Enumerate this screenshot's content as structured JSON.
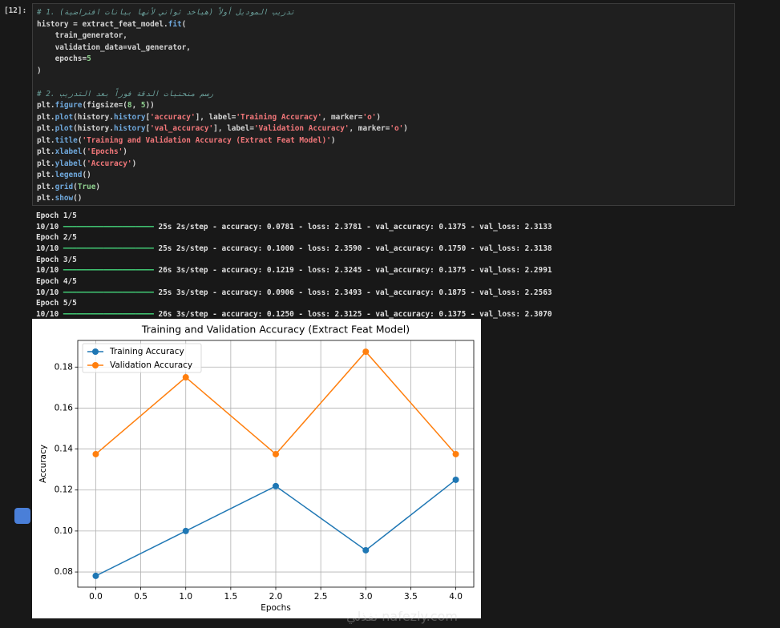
{
  "cell": {
    "prompt": "[12]:",
    "code_blocks": [
      [
        "# 1. تدريب الموديل أولاً (هياخد ثواني لأنها بيانات افتراضية)",
        "history = extract_feat_model.fit(",
        "    train_generator,",
        "    validation_data=val_generator,",
        "    epochs=5",
        ")"
      ],
      [
        "# 2. رسم منحنيات الدقة فوراً بعد التدريب",
        "plt.figure(figsize=(8, 5))",
        "plt.plot(history.history['accuracy'], label='Training Accuracy', marker='o')",
        "plt.plot(history.history['val_accuracy'], label='Validation Accuracy', marker='o')",
        "plt.title('Training and Validation Accuracy (Extract Feat Model)')",
        "plt.xlabel('Epochs')",
        "plt.ylabel('Accuracy')",
        "plt.legend()",
        "plt.grid(True)",
        "plt.show()"
      ]
    ],
    "output": [
      {
        "epoch": "Epoch 1/5",
        "steps": "10/10",
        "bar": "━━━━━━━━━━━━━━━━━━━━",
        "stats": "25s 2s/step - accuracy: 0.0781 - loss: 2.3781 - val_accuracy: 0.1375 - val_loss: 2.3133"
      },
      {
        "epoch": "Epoch 2/5",
        "steps": "10/10",
        "bar": "━━━━━━━━━━━━━━━━━━━━",
        "stats": "25s 2s/step - accuracy: 0.1000 - loss: 2.3590 - val_accuracy: 0.1750 - val_loss: 2.3138"
      },
      {
        "epoch": "Epoch 3/5",
        "steps": "10/10",
        "bar": "━━━━━━━━━━━━━━━━━━━━",
        "stats": "26s 3s/step - accuracy: 0.1219 - loss: 2.3245 - val_accuracy: 0.1375 - val_loss: 2.2991"
      },
      {
        "epoch": "Epoch 4/5",
        "steps": "10/10",
        "bar": "━━━━━━━━━━━━━━━━━━━━",
        "stats": "25s 3s/step - accuracy: 0.0906 - loss: 2.3493 - val_accuracy: 0.1875 - val_loss: 2.2563"
      },
      {
        "epoch": "Epoch 5/5",
        "steps": "10/10",
        "bar": "━━━━━━━━━━━━━━━━━━━━",
        "stats": "26s 3s/step - accuracy: 0.1250 - loss: 2.3125 - val_accuracy: 0.1375 - val_loss: 2.3070"
      }
    ]
  },
  "chart_data": {
    "type": "line",
    "title": "Training and Validation Accuracy (Extract Feat Model)",
    "x_label": "Epochs",
    "y_label": "Accuracy",
    "x": [
      0,
      1,
      2,
      3,
      4
    ],
    "series": [
      {
        "name": "Training Accuracy",
        "color": "#1f77b4",
        "values": [
          0.0781,
          0.1,
          0.1219,
          0.0906,
          0.125
        ]
      },
      {
        "name": "Validation Accuracy",
        "color": "#ff7f0e",
        "values": [
          0.1375,
          0.175,
          0.1375,
          0.1875,
          0.1375
        ]
      }
    ],
    "xlim": [
      -0.2,
      4.2
    ],
    "xticks": [
      {
        "value": 0,
        "label": "0.0"
      },
      0.5,
      {
        "value": 1,
        "label": "1.0"
      },
      1.5,
      {
        "value": 2,
        "label": "2.0"
      },
      2.5,
      {
        "value": 3,
        "label": "3.0"
      },
      3.5,
      {
        "value": 4,
        "label": "4.0"
      }
    ],
    "ylim": [
      0.0726,
      0.193
    ],
    "yticks": [
      0.08,
      {
        "value": 0.1,
        "label": "0.10"
      },
      0.12,
      0.14,
      0.16,
      0.18
    ],
    "grid": true,
    "legend": "upper-left",
    "marker": "circle"
  },
  "watermark": "نفذلي nafezly.com"
}
